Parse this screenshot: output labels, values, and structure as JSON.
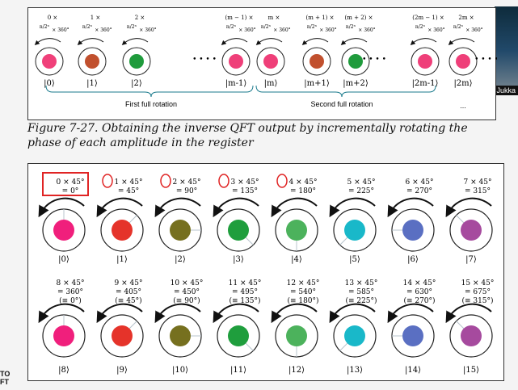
{
  "sidebar": {
    "presenter_name": "Jukka"
  },
  "corner": {
    "line1": "TO",
    "line2": "FT"
  },
  "figure_top": {
    "angle_labels": [
      {
        "top": "0 ×",
        "frac": "n/2ⁿ",
        "rest": "× 360°"
      },
      {
        "top": "1 ×",
        "frac": "n/2ⁿ",
        "rest": "× 360°"
      },
      {
        "top": "2 ×",
        "frac": "n/2ⁿ",
        "rest": "× 360°"
      },
      {
        "top": "(m − 1) ×",
        "frac": "n/2ⁿ",
        "rest": "× 360°"
      },
      {
        "top": "m ×",
        "frac": "n/2ⁿ",
        "rest": "× 360°"
      },
      {
        "top": "(m + 1) ×",
        "frac": "n/2ⁿ",
        "rest": "× 360°"
      },
      {
        "top": "(m + 2) ×",
        "frac": "n/2ⁿ",
        "rest": "× 360°"
      },
      {
        "top": "(2m − 1) ×",
        "frac": "n/2ⁿ",
        "rest": "× 360°"
      },
      {
        "top": "2m ×",
        "frac": "n/2ⁿ",
        "rest": "× 360°"
      }
    ],
    "kets": [
      "|0⟩",
      "|1⟩",
      "|2⟩",
      "|m-1⟩",
      "|m⟩",
      "|m+1⟩",
      "|m+2⟩",
      "|2m-1⟩",
      "|2m⟩"
    ],
    "ellipsis": "• • • •",
    "brace_labels": {
      "first": "First full rotation",
      "second": "Second full rotation",
      "third": "..."
    },
    "colors": [
      "#f0407a",
      "#c1502e",
      "#1f9b3c",
      "#ef3f79",
      "#ef3f79",
      "#c1502e",
      "#1f9b3c",
      "#ef3f79",
      "#ef3f79"
    ]
  },
  "caption": "Figure 7-27. Obtaining the inverse QFT output by incrementally rotating the phase of each amplitude in the register",
  "figure_bottom": {
    "row1": [
      {
        "l1": "0 × 45°",
        "l2": "= 0°",
        "ket": "|0⟩",
        "color": "#f01f7c"
      },
      {
        "l1": "1 × 45°",
        "l2": "= 45°",
        "ket": "|1⟩",
        "color": "#e5332a"
      },
      {
        "l1": "2 × 45°",
        "l2": "= 90°",
        "ket": "|2⟩",
        "color": "#76701f"
      },
      {
        "l1": "3 × 45°",
        "l2": "= 135°",
        "ket": "|3⟩",
        "color": "#1f9e3d"
      },
      {
        "l1": "4 × 45°",
        "l2": "= 180°",
        "ket": "|4⟩",
        "color": "#4cb25c"
      },
      {
        "l1": "5 × 45°",
        "l2": "= 225°",
        "ket": "|5⟩",
        "color": "#19b8c9"
      },
      {
        "l1": "6 × 45°",
        "l2": "= 270°",
        "ket": "|6⟩",
        "color": "#5a6fc2"
      },
      {
        "l1": "7 × 45°",
        "l2": "= 315°",
        "ket": "|7⟩",
        "color": "#a64a9e"
      }
    ],
    "row2": [
      {
        "l1": "8 × 45°",
        "l2": "= 360°",
        "l3": "(≡ 0°)",
        "ket": "|8⟩",
        "color": "#f01f7c"
      },
      {
        "l1": "9 × 45°",
        "l2": "= 405°",
        "l3": "(≡ 45°)",
        "ket": "|9⟩",
        "color": "#e5332a"
      },
      {
        "l1": "10 × 45°",
        "l2": "= 450°",
        "l3": "(≡ 90°)",
        "ket": "|10⟩",
        "color": "#76701f"
      },
      {
        "l1": "11 × 45°",
        "l2": "= 495°",
        "l3": "(≡ 135°)",
        "ket": "|11⟩",
        "color": "#1f9e3d"
      },
      {
        "l1": "12 × 45°",
        "l2": "= 540°",
        "l3": "(≡ 180°)",
        "ket": "|12⟩",
        "color": "#4cb25c"
      },
      {
        "l1": "13 × 45°",
        "l2": "= 585°",
        "l3": "(≡ 225°)",
        "ket": "|13⟩",
        "color": "#19b8c9"
      },
      {
        "l1": "14 × 45°",
        "l2": "= 630°",
        "l3": "(≡ 270°)",
        "ket": "|14⟩",
        "color": "#5a6fc2"
      },
      {
        "l1": "15 × 45°",
        "l2": "= 675°",
        "l3": "(≡ 315°)",
        "ket": "|15⟩",
        "color": "#a64a9e"
      }
    ],
    "annotation_color": "#e02424"
  }
}
